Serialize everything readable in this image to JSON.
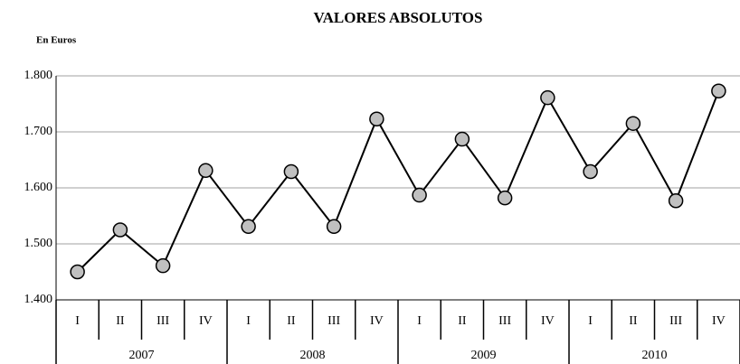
{
  "chart_data": {
    "type": "line",
    "title": "VALORES ABSOLUTOS",
    "y_axis_label": "En Euros",
    "categories": [
      "I",
      "II",
      "III",
      "IV",
      "I",
      "II",
      "III",
      "IV",
      "I",
      "II",
      "III",
      "IV",
      "I",
      "II",
      "III",
      "IV"
    ],
    "category_groups": [
      "2007",
      "2008",
      "2009",
      "2010"
    ],
    "values": [
      1450,
      1525,
      1461,
      1631,
      1531,
      1629,
      1531,
      1723,
      1587,
      1687,
      1582,
      1761,
      1629,
      1715,
      1577,
      1773
    ],
    "color": "#000000",
    "marker_color": "#c0c0c0",
    "ylim": [
      1400,
      1800
    ],
    "yticks": [
      {
        "value": 1400,
        "label": "1.400"
      },
      {
        "value": 1500,
        "label": "1.500"
      },
      {
        "value": 1600,
        "label": "1.600"
      },
      {
        "value": 1700,
        "label": "1.700"
      },
      {
        "value": 1800,
        "label": "1.800"
      }
    ],
    "grid": true
  }
}
